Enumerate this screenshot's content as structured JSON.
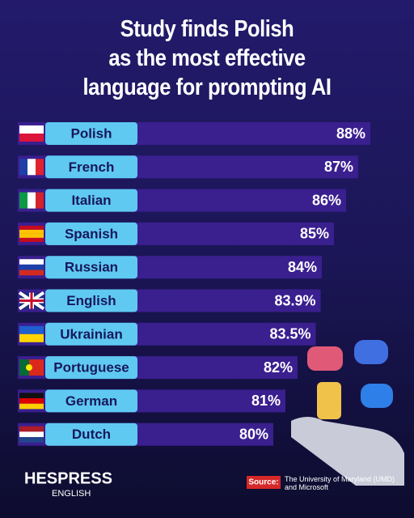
{
  "chart_data": {
    "type": "bar",
    "orientation": "horizontal",
    "title": "Study finds Polish\nas the most effective\nlanguage for prompting AI",
    "categories": [
      "Polish",
      "French",
      "Italian",
      "Spanish",
      "Russian",
      "English",
      "Ukrainian",
      "Portuguese",
      "German",
      "Dutch"
    ],
    "values": [
      88,
      87,
      86,
      85,
      84,
      83.9,
      83.5,
      82,
      81,
      80
    ],
    "value_labels": [
      "88%",
      "87%",
      "86%",
      "85%",
      "84%",
      "83.9%",
      "83.5%",
      "82%",
      "81%",
      "80%"
    ],
    "color": "#3a1f8f",
    "label_color": "#5fc9f2"
  },
  "footer": {
    "brand": "HESPRESS",
    "brand_sub": "ENGLISH",
    "source_label": "Source:",
    "source_text": "The University of Maryland (UMD)\nand Microsoft"
  }
}
